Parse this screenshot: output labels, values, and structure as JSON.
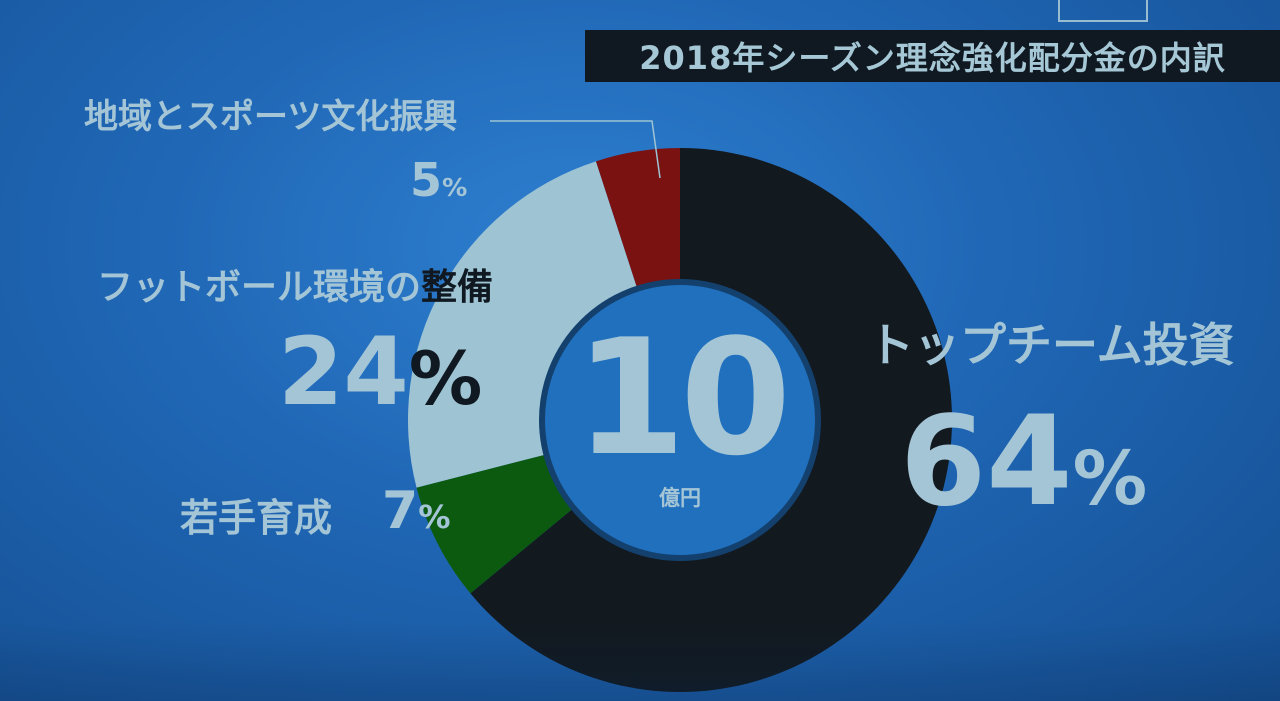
{
  "title": "2018年シーズン理念強化配分金の内訳",
  "center": {
    "value": "10",
    "unit": "億円"
  },
  "labels": {
    "region": {
      "name": "地域とスポーツ文化振興",
      "pct": "5",
      "sign": "%"
    },
    "football": {
      "name_light": "フットボール環境の",
      "name_dark": "整備",
      "pct": "24",
      "sign": "%"
    },
    "youth": {
      "name": "若手育成",
      "pct": "7",
      "sign": "%"
    },
    "top": {
      "name": "トップチーム投資",
      "pct": "64",
      "sign": "%"
    }
  },
  "colors": {
    "top": "#12191f",
    "youth": "#0b5a10",
    "football": "#9ec4d4",
    "region": "#7a1212",
    "hole": "#2070bd",
    "label": "#a4c5d6"
  },
  "chart_data": {
    "type": "pie",
    "donut": true,
    "title": "2018年シーズン理念強化配分金の内訳",
    "total": "10億円",
    "categories": [
      "トップチーム投資",
      "若手育成",
      "フットボール環境の整備",
      "地域とスポーツ文化振興"
    ],
    "values": [
      64,
      7,
      24,
      5
    ],
    "unit": "%",
    "start": "12 o'clock",
    "direction": "clockwise"
  }
}
